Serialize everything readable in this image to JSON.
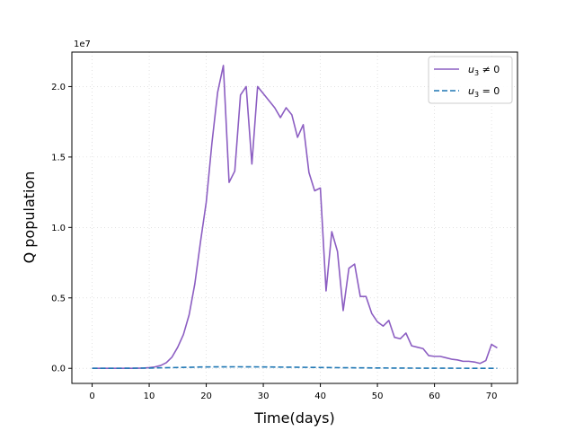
{
  "chart_data": {
    "type": "line",
    "xlabel": "Time(days)",
    "ylabel": "Q population",
    "y_offset_label": "1e7",
    "xlim": [
      -3.55,
      74.55
    ],
    "ylim": [
      -1070000.0,
      22450000.0
    ],
    "x_ticks": [
      0,
      10,
      20,
      30,
      40,
      50,
      60,
      70
    ],
    "x_tick_labels": [
      "0",
      "10",
      "20",
      "30",
      "40",
      "50",
      "60",
      "70"
    ],
    "y_ticks": [
      0,
      5000000,
      10000000,
      15000000,
      20000000
    ],
    "y_tick_labels": [
      "0.0",
      "0.5",
      "1.0",
      "1.5",
      "2.0"
    ],
    "grid": true,
    "legend_position": "top-right",
    "series": [
      {
        "name": "u3≠0",
        "label_main": "u",
        "label_sub": "3",
        "label_rest": " ≠ 0",
        "color": "#8c5ec2",
        "dash": "solid",
        "x": [
          0,
          1,
          2,
          3,
          4,
          5,
          6,
          7,
          8,
          9,
          10,
          11,
          12,
          13,
          14,
          15,
          16,
          17,
          18,
          19,
          20,
          21,
          22,
          23,
          24,
          25,
          26,
          27,
          28,
          29,
          30,
          31,
          32,
          33,
          34,
          35,
          36,
          37,
          38,
          39,
          40,
          41,
          42,
          43,
          44,
          45,
          46,
          47,
          48,
          49,
          50,
          51,
          52,
          53,
          54,
          55,
          56,
          57,
          58,
          59,
          60,
          61,
          62,
          63,
          64,
          65,
          66,
          67,
          68,
          69,
          70,
          71
        ],
        "y": [
          0,
          0,
          0,
          0,
          0,
          0,
          0,
          0,
          10000,
          20000,
          50000,
          100000,
          200000,
          400000,
          800000,
          1500000,
          2400000,
          3800000,
          6000000,
          9000000,
          11800000,
          16000000,
          19600000,
          21500000,
          13200000,
          14000000,
          19400000,
          20000000,
          14500000,
          20000000,
          19500000,
          19000000,
          18500000,
          17800000,
          18500000,
          18000000,
          16400000,
          17300000,
          13900000,
          12600000,
          12800000,
          5500000,
          9700000,
          8300000,
          4100000,
          7100000,
          7400000,
          5100000,
          5100000,
          3900000,
          3300000,
          3000000,
          3400000,
          2200000,
          2100000,
          2500000,
          1600000,
          1500000,
          1400000,
          900000,
          850000,
          850000,
          750000,
          650000,
          600000,
          500000,
          500000,
          450000,
          350000,
          550000,
          1700000,
          1450000
        ]
      },
      {
        "name": "u3=0",
        "label_main": "u",
        "label_sub": "3",
        "label_rest": " = 0",
        "color": "#1f77b4",
        "dash": "dashed",
        "x": [
          0,
          5,
          10,
          15,
          20,
          25,
          30,
          35,
          40,
          45,
          50,
          55,
          60,
          65,
          70,
          71
        ],
        "y": [
          0,
          5000,
          20000,
          60000,
          100000,
          110000,
          100000,
          80000,
          60000,
          40000,
          25000,
          15000,
          10000,
          5000,
          3000,
          3000
        ]
      }
    ]
  }
}
